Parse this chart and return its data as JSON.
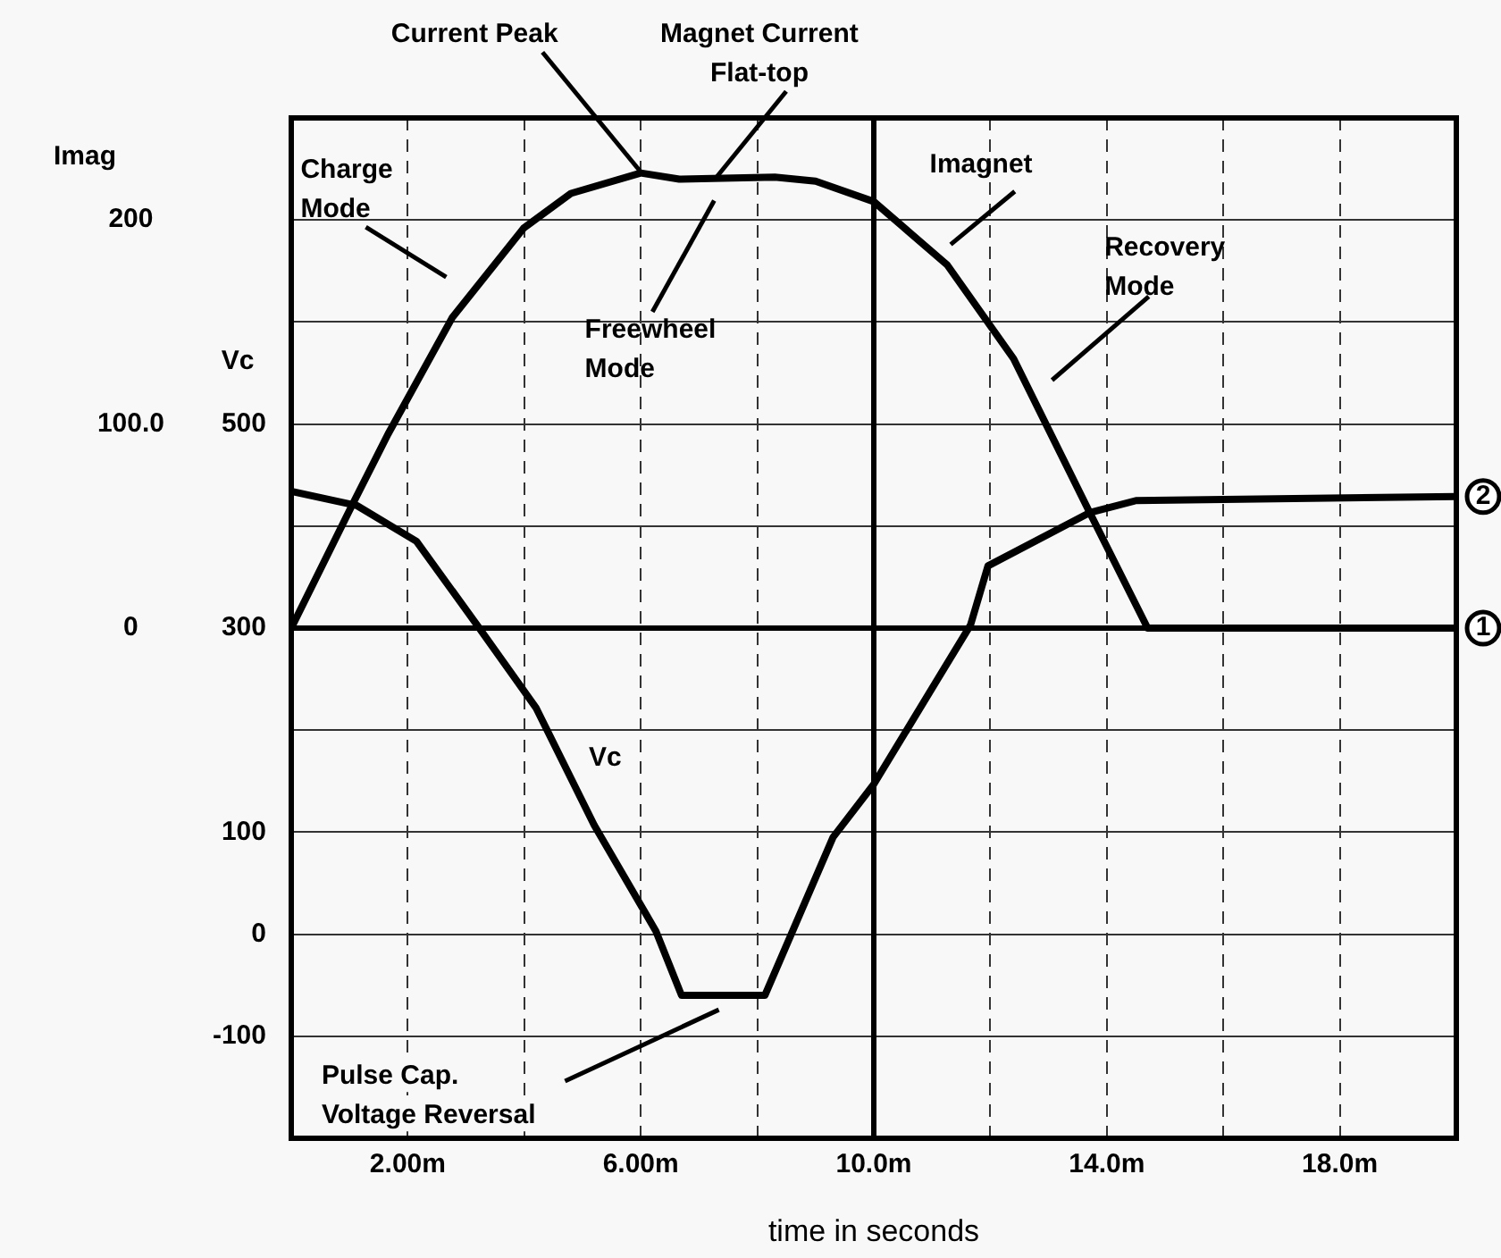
{
  "chart_data": {
    "type": "line",
    "xlabel": "time in seconds",
    "ylabel": "Vc",
    "y2label": "Imag",
    "xlim": [
      0,
      20
    ],
    "xticks": [
      {
        "value": 2,
        "label": "2.00m"
      },
      {
        "value": 4,
        "label": null
      },
      {
        "value": 6,
        "label": "6.00m"
      },
      {
        "value": 8,
        "label": null
      },
      {
        "value": 10,
        "label": "10.0m"
      },
      {
        "value": 12,
        "label": null
      },
      {
        "value": 14,
        "label": "14.0m"
      },
      {
        "value": 16,
        "label": null
      },
      {
        "value": 18,
        "label": "18.0m"
      }
    ],
    "ylim": [
      -200,
      800
    ],
    "yticks": [
      -100,
      0,
      100,
      {
        "value": 200,
        "label": null
      },
      300,
      {
        "value": 400,
        "label": null
      },
      500,
      {
        "value": 600,
        "label": null
      },
      {
        "value": 700,
        "label": null
      }
    ],
    "y2lim": [
      -250,
      250
    ],
    "y2ticks": [
      0,
      {
        "value": 100,
        "label": "100.0"
      },
      200
    ],
    "grid": true,
    "legend": false,
    "marker": "none",
    "line_style": "solid",
    "series": [
      {
        "type": "line",
        "axis": "y2",
        "color": "#000000",
        "x": [
          0,
          1.04,
          1.66,
          2.76,
          3.99,
          4.8,
          6.0,
          6.66,
          8.3,
          9.0,
          10.0,
          11.26,
          12.4,
          13.7,
          14.7,
          20
        ],
        "values": [
          0,
          60,
          95,
          152,
          196,
          213,
          223,
          220,
          221,
          219,
          209,
          178,
          132,
          57,
          0,
          0
        ]
      },
      {
        "type": "line",
        "axis": "y",
        "color": "#000000",
        "x": [
          0,
          1.13,
          2.15,
          3.19,
          4.2,
          5.2,
          6.26,
          6.7,
          8.13,
          9.3,
          10.0,
          11.66,
          11.96,
          13.7,
          14.5,
          20
        ],
        "values": [
          434,
          420,
          385,
          303,
          222,
          107,
          3,
          -60,
          -60,
          95,
          147,
          303,
          361,
          413,
          425,
          429
        ]
      }
    ],
    "annotations": [
      {
        "text": "Current Peak",
        "x": 6.0,
        "y": 747
      },
      {
        "text": "Magnet Current\nFlat-top",
        "x": 7.3,
        "y": 742
      },
      "Charge\nMode",
      "Freewheel\nMode",
      "Imagnet",
      "Recovery\nMode",
      {
        "text": "Vc",
        "x": 4.8,
        "y": 150
      },
      "Pulse Cap.\nVoltage Reversal",
      {
        "text": "1",
        "x": 20,
        "y": 300
      },
      {
        "text": "2",
        "x": 20,
        "y": 429
      }
    ]
  }
}
